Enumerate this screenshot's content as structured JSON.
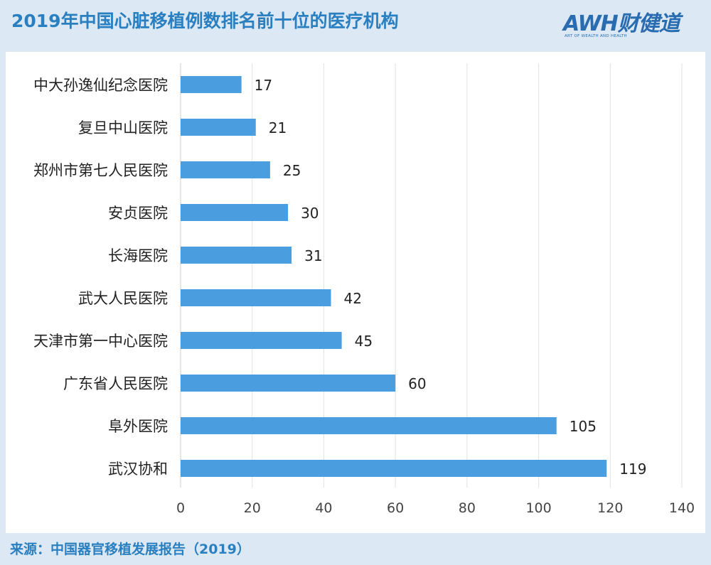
{
  "header": {
    "title": "2019年中国心脏移植例数排名前十位的医疗机构",
    "logo_main": "AWH财健道",
    "logo_sub": "ART OF WEALTH AND HEALTH"
  },
  "footer": {
    "source": "来源：中国器官移植发展报告（2019）"
  },
  "colors": {
    "bar": "#4a9ee0",
    "title": "#2a7fc0",
    "background": "#dce9f5",
    "grid": "#e2e2e2"
  },
  "chart_data": {
    "type": "bar",
    "orientation": "horizontal",
    "categories": [
      "中大孙逸仙纪念医院",
      "复旦中山医院",
      "郑州市第七人民医院",
      "安贞医院",
      "长海医院",
      "武大人民医院",
      "天津市第一中心医院",
      "广东省人民医院",
      "阜外医院",
      "武汉协和"
    ],
    "values": [
      17,
      21,
      25,
      30,
      31,
      42,
      45,
      60,
      105,
      119
    ],
    "xticks": [
      0,
      20,
      40,
      60,
      80,
      100,
      120,
      140
    ],
    "xlim": [
      0,
      140
    ],
    "grid": "vertical",
    "data_labels": true,
    "legend": "none"
  }
}
